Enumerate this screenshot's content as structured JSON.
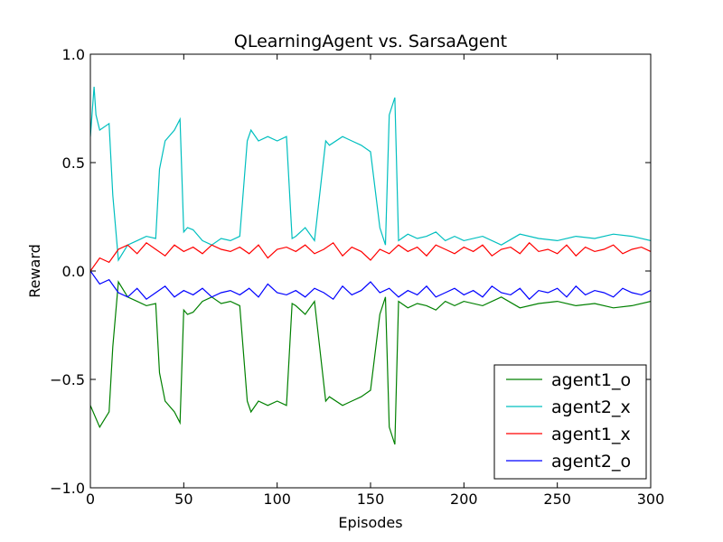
{
  "chart_data": {
    "type": "line",
    "title": "QLearningAgent vs. SarsaAgent",
    "xlabel": "Episodes",
    "ylabel": "Reward",
    "xlim": [
      0,
      300
    ],
    "ylim": [
      -1.0,
      1.0
    ],
    "xticks": [
      0,
      50,
      100,
      150,
      200,
      250,
      300
    ],
    "xtick_labels": [
      "0",
      "50",
      "100",
      "150",
      "200",
      "250",
      "300"
    ],
    "yticks": [
      -1.0,
      -0.5,
      0.0,
      0.5,
      1.0
    ],
    "ytick_labels": [
      "−1.0",
      "−0.5",
      "0.0",
      "0.5",
      "1.0"
    ],
    "grid": false,
    "legend_position": "bottom-right",
    "series": [
      {
        "name": "agent1_o",
        "color": "#008000",
        "x": [
          0,
          5,
          10,
          12,
          15,
          20,
          25,
          30,
          35,
          37,
          40,
          45,
          48,
          50,
          52,
          55,
          60,
          65,
          70,
          75,
          80,
          84,
          86,
          90,
          95,
          100,
          105,
          108,
          110,
          115,
          120,
          126,
          128,
          135,
          140,
          145,
          150,
          155,
          158,
          160,
          163,
          165,
          170,
          175,
          180,
          185,
          190,
          195,
          200,
          210,
          220,
          230,
          240,
          250,
          260,
          270,
          280,
          290,
          300
        ],
        "values": [
          -0.62,
          -0.72,
          -0.65,
          -0.35,
          -0.05,
          -0.12,
          -0.14,
          -0.16,
          -0.15,
          -0.47,
          -0.6,
          -0.65,
          -0.7,
          -0.18,
          -0.2,
          -0.19,
          -0.14,
          -0.12,
          -0.15,
          -0.14,
          -0.16,
          -0.6,
          -0.65,
          -0.6,
          -0.62,
          -0.6,
          -0.62,
          -0.15,
          -0.16,
          -0.2,
          -0.14,
          -0.6,
          -0.58,
          -0.62,
          -0.6,
          -0.58,
          -0.55,
          -0.2,
          -0.12,
          -0.72,
          -0.8,
          -0.14,
          -0.17,
          -0.15,
          -0.16,
          -0.18,
          -0.14,
          -0.16,
          -0.14,
          -0.16,
          -0.12,
          -0.17,
          -0.15,
          -0.14,
          -0.16,
          -0.15,
          -0.17,
          -0.16,
          -0.14
        ]
      },
      {
        "name": "agent2_x",
        "color": "#00bfbf",
        "x": [
          0,
          2,
          3,
          5,
          10,
          12,
          15,
          20,
          25,
          30,
          35,
          37,
          40,
          45,
          48,
          50,
          52,
          55,
          60,
          65,
          70,
          75,
          80,
          84,
          86,
          90,
          95,
          100,
          105,
          108,
          110,
          115,
          120,
          126,
          128,
          135,
          140,
          145,
          150,
          155,
          158,
          160,
          163,
          165,
          170,
          175,
          180,
          185,
          190,
          195,
          200,
          210,
          220,
          230,
          240,
          250,
          260,
          270,
          280,
          290,
          300
        ],
        "values": [
          0.62,
          0.85,
          0.72,
          0.65,
          0.68,
          0.35,
          0.05,
          0.12,
          0.14,
          0.16,
          0.15,
          0.47,
          0.6,
          0.65,
          0.7,
          0.18,
          0.2,
          0.19,
          0.14,
          0.12,
          0.15,
          0.14,
          0.16,
          0.6,
          0.65,
          0.6,
          0.62,
          0.6,
          0.62,
          0.15,
          0.16,
          0.2,
          0.14,
          0.6,
          0.58,
          0.62,
          0.6,
          0.58,
          0.55,
          0.2,
          0.12,
          0.72,
          0.8,
          0.14,
          0.17,
          0.15,
          0.16,
          0.18,
          0.14,
          0.16,
          0.14,
          0.16,
          0.12,
          0.17,
          0.15,
          0.14,
          0.16,
          0.15,
          0.17,
          0.16,
          0.14
        ]
      },
      {
        "name": "agent1_x",
        "color": "#ff0000",
        "x": [
          0,
          5,
          10,
          15,
          20,
          25,
          30,
          35,
          40,
          45,
          50,
          55,
          60,
          65,
          70,
          75,
          80,
          85,
          90,
          95,
          100,
          105,
          110,
          115,
          120,
          125,
          130,
          135,
          140,
          145,
          150,
          155,
          160,
          165,
          170,
          175,
          180,
          185,
          190,
          195,
          200,
          205,
          210,
          215,
          220,
          225,
          230,
          235,
          240,
          245,
          250,
          255,
          260,
          265,
          270,
          275,
          280,
          285,
          290,
          295,
          300
        ],
        "values": [
          0.0,
          0.06,
          0.04,
          0.1,
          0.12,
          0.08,
          0.13,
          0.1,
          0.07,
          0.12,
          0.09,
          0.11,
          0.08,
          0.12,
          0.1,
          0.09,
          0.11,
          0.08,
          0.12,
          0.06,
          0.1,
          0.11,
          0.09,
          0.12,
          0.08,
          0.1,
          0.13,
          0.07,
          0.11,
          0.09,
          0.05,
          0.1,
          0.08,
          0.12,
          0.09,
          0.11,
          0.07,
          0.12,
          0.1,
          0.08,
          0.11,
          0.09,
          0.12,
          0.07,
          0.1,
          0.11,
          0.08,
          0.13,
          0.09,
          0.1,
          0.08,
          0.12,
          0.07,
          0.11,
          0.09,
          0.1,
          0.12,
          0.08,
          0.1,
          0.11,
          0.09
        ]
      },
      {
        "name": "agent2_o",
        "color": "#0000ff",
        "x": [
          0,
          5,
          10,
          15,
          20,
          25,
          30,
          35,
          40,
          45,
          50,
          55,
          60,
          65,
          70,
          75,
          80,
          85,
          90,
          95,
          100,
          105,
          110,
          115,
          120,
          125,
          130,
          135,
          140,
          145,
          150,
          155,
          160,
          165,
          170,
          175,
          180,
          185,
          190,
          195,
          200,
          205,
          210,
          215,
          220,
          225,
          230,
          235,
          240,
          245,
          250,
          255,
          260,
          265,
          270,
          275,
          280,
          285,
          290,
          295,
          300
        ],
        "values": [
          0.0,
          -0.06,
          -0.04,
          -0.1,
          -0.12,
          -0.08,
          -0.13,
          -0.1,
          -0.07,
          -0.12,
          -0.09,
          -0.11,
          -0.08,
          -0.12,
          -0.1,
          -0.09,
          -0.11,
          -0.08,
          -0.12,
          -0.06,
          -0.1,
          -0.11,
          -0.09,
          -0.12,
          -0.08,
          -0.1,
          -0.13,
          -0.07,
          -0.11,
          -0.09,
          -0.05,
          -0.1,
          -0.08,
          -0.12,
          -0.09,
          -0.11,
          -0.07,
          -0.12,
          -0.1,
          -0.08,
          -0.11,
          -0.09,
          -0.12,
          -0.07,
          -0.1,
          -0.11,
          -0.08,
          -0.13,
          -0.09,
          -0.1,
          -0.08,
          -0.12,
          -0.07,
          -0.11,
          -0.09,
          -0.1,
          -0.12,
          -0.08,
          -0.1,
          -0.11,
          -0.09
        ]
      }
    ]
  }
}
